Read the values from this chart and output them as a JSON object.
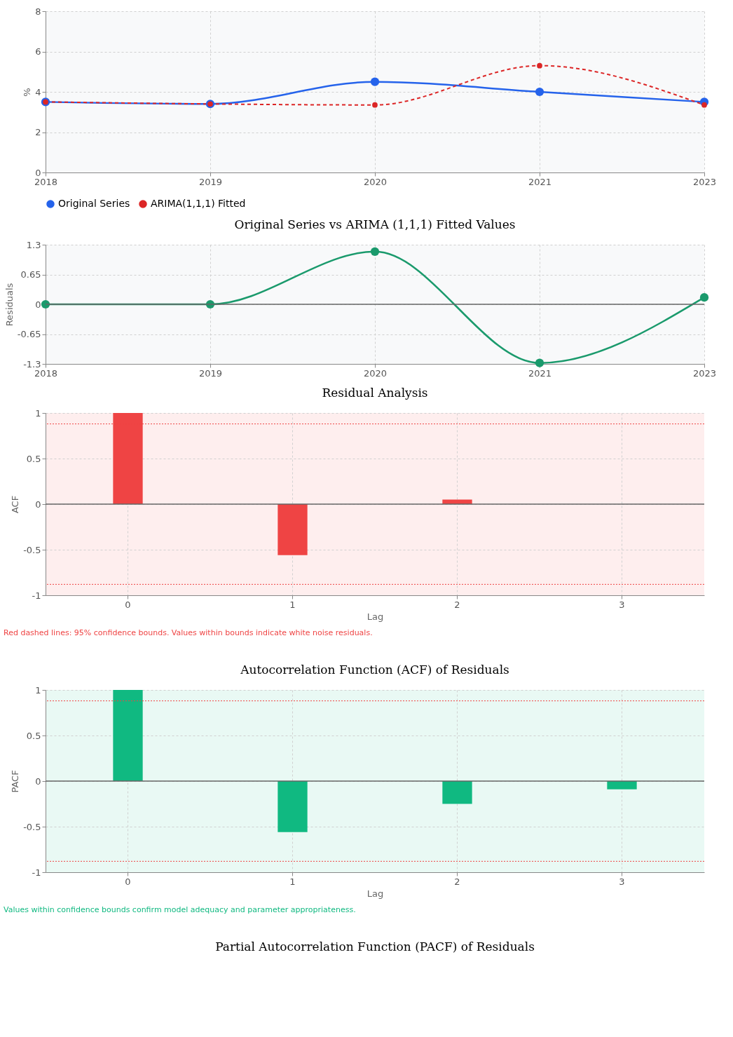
{
  "chart_data": [
    {
      "type": "line",
      "title": "Original Series vs ARIMA (1,1,1) Fitted Values",
      "ylabel": "%",
      "categories": [
        "2018",
        "2019",
        "2020",
        "2021",
        "2023"
      ],
      "ylim": [
        0,
        8
      ],
      "yticks": [
        0,
        2,
        4,
        6,
        8
      ],
      "grid": true,
      "legend": "bottom",
      "marker": "circle",
      "series": [
        {
          "name": "Original Series",
          "color": "#2563eb",
          "line_style": "solid",
          "values": [
            3.5,
            3.4,
            4.5,
            4.0,
            3.5
          ]
        },
        {
          "name": "ARIMA(1,1,1) Fitted",
          "color": "#dc2626",
          "line_style": "dashed",
          "values": [
            3.5,
            3.4,
            3.35,
            5.3,
            3.35
          ]
        }
      ]
    },
    {
      "type": "line",
      "title": "Residual Analysis",
      "ylabel": "Residuals",
      "categories": [
        "2018",
        "2019",
        "2020",
        "2021",
        "2023"
      ],
      "ylim": [
        -1.3,
        1.3
      ],
      "yticks": [
        -1.3,
        -0.65,
        0,
        0.65,
        1.3
      ],
      "grid": true,
      "marker": "circle",
      "series": [
        {
          "color": "#1a9a6c",
          "line_style": "solid",
          "values": [
            0,
            0,
            1.15,
            -1.28,
            0.15
          ]
        }
      ],
      "ref_lines": [
        {
          "axis": "y",
          "value": 0,
          "color": "#666666",
          "line_style": "solid"
        }
      ]
    },
    {
      "type": "bar",
      "title": "Autocorrelation Function (ACF) of Residuals",
      "xlabel": "Lag",
      "ylabel": "ACF",
      "categories": [
        "0",
        "1",
        "2",
        "3"
      ],
      "ylim": [
        -1,
        1
      ],
      "yticks": [
        -1,
        -0.5,
        0,
        0.5,
        1
      ],
      "grid": true,
      "series": [
        {
          "color": "#ef4444",
          "values": [
            1,
            -0.56,
            0.05,
            0
          ]
        }
      ],
      "ref_lines": [
        {
          "axis": "y",
          "value": 0.88,
          "color": "#ef4444",
          "line_style": "dotted"
        },
        {
          "axis": "y",
          "value": -0.88,
          "color": "#ef4444",
          "line_style": "dotted"
        },
        {
          "axis": "y",
          "value": 0,
          "color": "#666666",
          "line_style": "solid"
        }
      ],
      "annotations": [
        "Red dashed lines: 95% confidence bounds. Values within bounds indicate white noise residuals."
      ]
    },
    {
      "type": "bar",
      "title": "Partial Autocorrelation Function (PACF) of Residuals",
      "xlabel": "Lag",
      "ylabel": "PACF",
      "categories": [
        "0",
        "1",
        "2",
        "3"
      ],
      "ylim": [
        -1,
        1
      ],
      "yticks": [
        -1,
        -0.5,
        0,
        0.5,
        1
      ],
      "grid": true,
      "series": [
        {
          "color": "#10b981",
          "values": [
            1,
            -0.56,
            -0.25,
            -0.09
          ]
        }
      ],
      "ref_lines": [
        {
          "axis": "y",
          "value": 0.88,
          "color": "#ef4444",
          "line_style": "dotted"
        },
        {
          "axis": "y",
          "value": -0.88,
          "color": "#ef4444",
          "line_style": "dotted"
        },
        {
          "axis": "y",
          "value": 0,
          "color": "#666666",
          "line_style": "solid"
        }
      ],
      "annotations": [
        "Values within confidence bounds confirm model adequacy and parameter appropriateness."
      ]
    }
  ]
}
